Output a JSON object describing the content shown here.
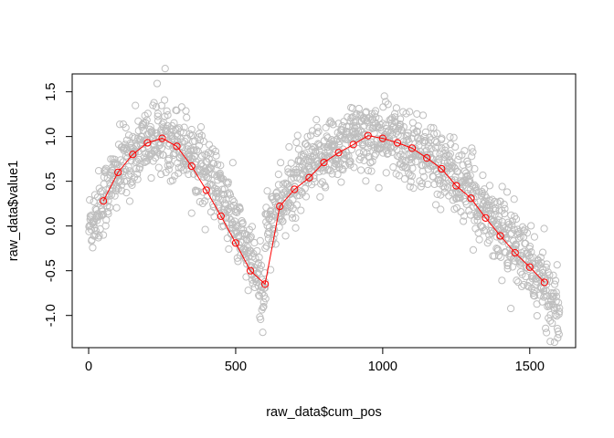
{
  "chart_data": {
    "type": "scatter",
    "xlabel": "raw_data$cum_pos",
    "ylabel": "raw_data$value1",
    "xlim": [
      -56,
      1656
    ],
    "ylim": [
      -1.36,
      1.7
    ],
    "x_ticks": [
      0,
      500,
      1000,
      1500
    ],
    "x_tick_labels": [
      "0",
      "500",
      "1000",
      "1500"
    ],
    "y_ticks": [
      -1.0,
      -0.5,
      0.0,
      0.5,
      1.0,
      1.5
    ],
    "y_tick_labels": [
      "-1.0",
      "-0.5",
      "0.0",
      "0.5",
      "1.0",
      "1.5"
    ],
    "grid": false,
    "raw_points": {
      "color": "#bebebe",
      "marker": "open-circle",
      "segments": [
        {
          "x_start": 0,
          "x_end": 600,
          "y_start": 0.0,
          "y_peak": 1.0,
          "peak_x": 250,
          "y_end": -0.8
        },
        {
          "x_start": 600,
          "x_end": 1600,
          "y_start": 0.0,
          "y_peak": 1.0,
          "peak_x": 950,
          "y_end": -0.92
        }
      ],
      "points_per_x": 2,
      "spread": 0.2
    },
    "series": [
      {
        "color": "#ff0000",
        "marker": "open-circle",
        "x": [
          50,
          100,
          150,
          200,
          250,
          300,
          350,
          400,
          450,
          500,
          550,
          600,
          650,
          700,
          750,
          800,
          850,
          900,
          950,
          1000,
          1050,
          1100,
          1150,
          1200,
          1250,
          1300,
          1350,
          1400,
          1450,
          1500,
          1550
        ],
        "y": [
          0.28,
          0.6,
          0.8,
          0.93,
          0.98,
          0.89,
          0.67,
          0.4,
          0.11,
          -0.19,
          -0.5,
          -0.65,
          0.22,
          0.41,
          0.54,
          0.71,
          0.82,
          0.91,
          1.01,
          0.98,
          0.93,
          0.87,
          0.76,
          0.64,
          0.45,
          0.31,
          0.09,
          -0.11,
          -0.3,
          -0.46,
          -0.63
        ]
      }
    ]
  }
}
